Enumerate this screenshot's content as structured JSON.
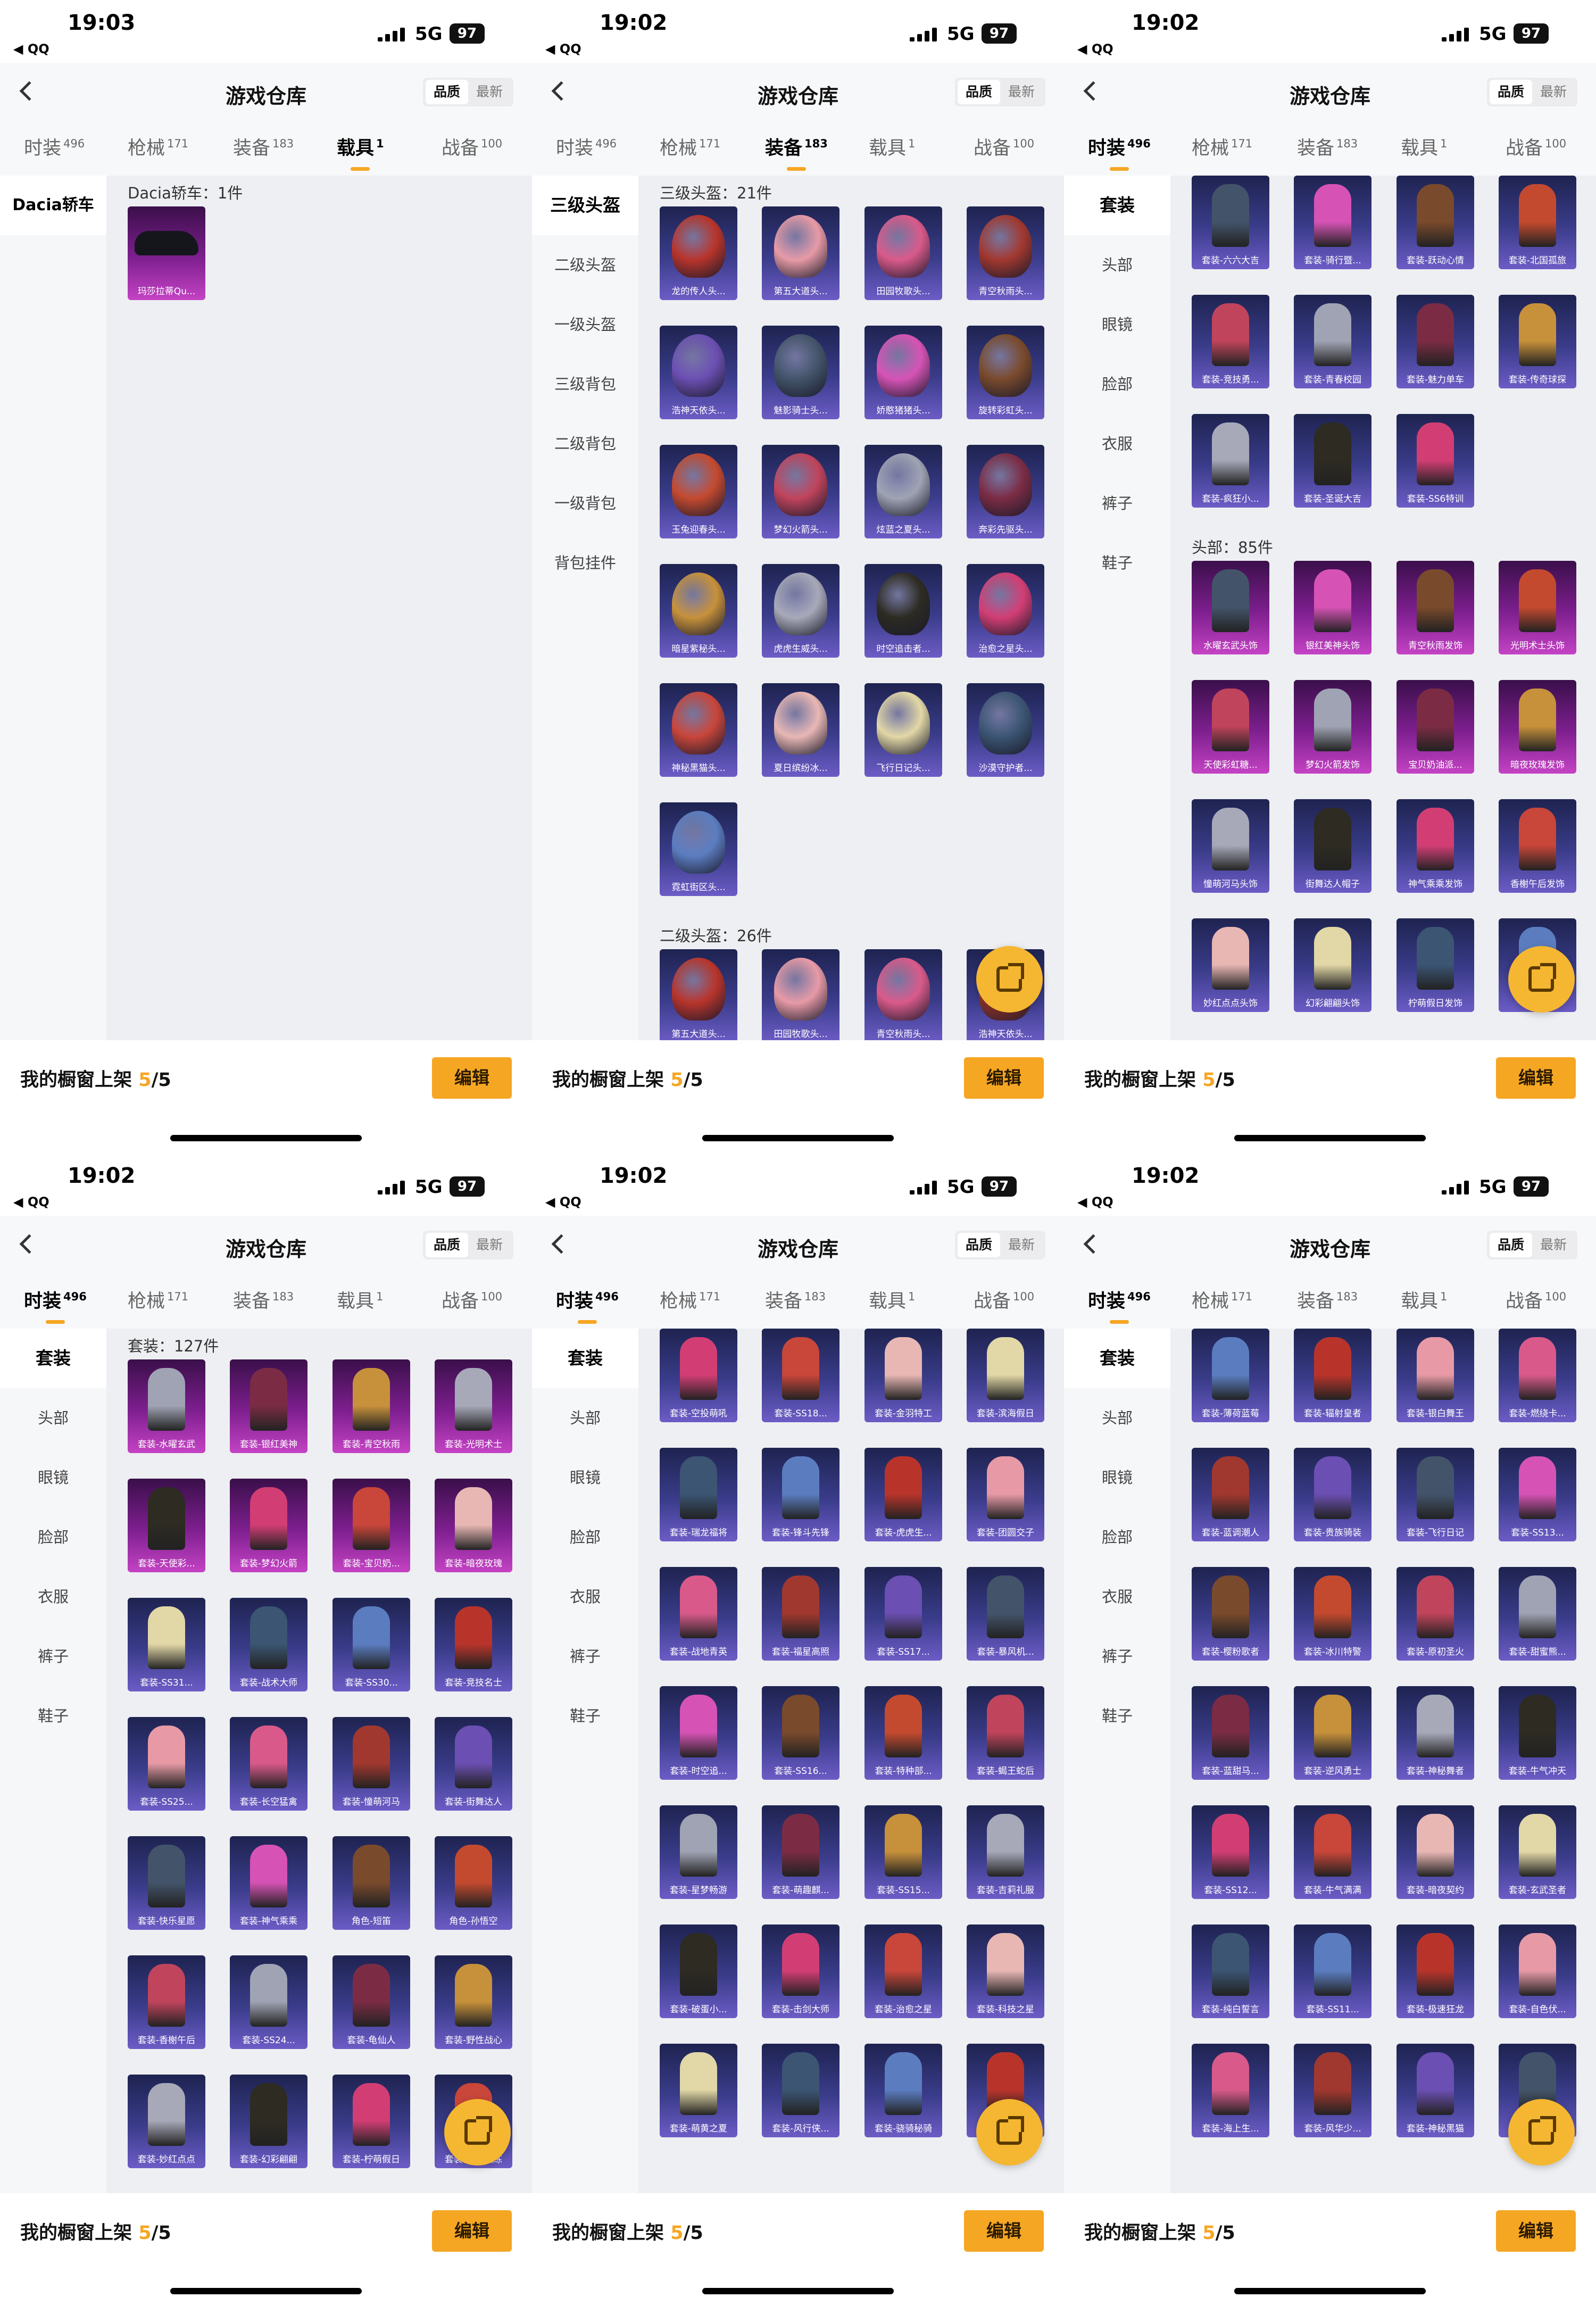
{
  "status_bar": {
    "back_app": "◀ QQ",
    "network": "5G",
    "battery": "97"
  },
  "nav": {
    "title": "游戏仓库",
    "sort_quality": "品质",
    "sort_latest": "最新"
  },
  "tab_labels": [
    {
      "label": "时装",
      "count": "496"
    },
    {
      "label": "枪械",
      "count": "171"
    },
    {
      "label": "装备",
      "count": "183"
    },
    {
      "label": "载具",
      "count": "1"
    },
    {
      "label": "战备",
      "count": "100"
    }
  ],
  "bottom_bar": {
    "label": "我的橱窗上架",
    "current": "5",
    "total": "/5",
    "edit": "编辑"
  },
  "panels": [
    {
      "time": "19:03",
      "active_tab": 3,
      "sidebar": [
        "Dacia轿车"
      ],
      "sections": [
        {
          "header": "Dacia轿车：1件",
          "items": [
            {
              "label": "玛莎拉蒂Qu...",
              "kind": "car"
            }
          ]
        }
      ]
    },
    {
      "time": "19:02",
      "active_tab": 2,
      "sidebar": [
        "三级头盔",
        "二级头盔",
        "一级头盔",
        "三级背包",
        "二级背包",
        "一级背包",
        "背包挂件"
      ],
      "sections": [
        {
          "header": "三级头盔：21件",
          "items": [
            {
              "label": "龙的传人头..."
            },
            {
              "label": "第五大道头..."
            },
            {
              "label": "田园牧歌头..."
            },
            {
              "label": "青空秋雨头..."
            },
            {
              "label": "浩神天依头..."
            },
            {
              "label": "魅影骑士头..."
            },
            {
              "label": "娇憨猪猪头..."
            },
            {
              "label": "旋转彩虹头..."
            },
            {
              "label": "玉兔迎春头..."
            },
            {
              "label": "梦幻火箭头..."
            },
            {
              "label": "炫蓝之夏头..."
            },
            {
              "label": "奔彩先驱头..."
            },
            {
              "label": "暗星紫秘头..."
            },
            {
              "label": "虎虎生威头..."
            },
            {
              "label": "时空追击者..."
            },
            {
              "label": "治愈之星头..."
            },
            {
              "label": "神秘黑猫头..."
            },
            {
              "label": "夏日缤纷冰..."
            },
            {
              "label": "飞行日记头..."
            },
            {
              "label": "沙漠守护者..."
            },
            {
              "label": "霓虹街区头..."
            }
          ]
        },
        {
          "header": "二级头盔：26件",
          "items": [
            {
              "label": "第五大道头..."
            },
            {
              "label": "田园牧歌头..."
            },
            {
              "label": "青空秋雨头..."
            },
            {
              "label": "浩神天依头..."
            }
          ]
        }
      ]
    },
    {
      "time": "19:02",
      "active_tab": 0,
      "sidebar": [
        "套装",
        "头部",
        "眼镜",
        "脸部",
        "衣服",
        "裤子",
        "鞋子"
      ],
      "sections": [
        {
          "header": "",
          "items": [
            {
              "label": "套装-六六大吉"
            },
            {
              "label": "套装-骑行暨..."
            },
            {
              "label": "套装-跃动心情"
            },
            {
              "label": "套装-北国孤旅"
            },
            {
              "label": "套装-竞技勇..."
            },
            {
              "label": "套装-青春校园"
            },
            {
              "label": "套装-魅力单车"
            },
            {
              "label": "套装-传奇球探"
            },
            {
              "label": "套装-疯狂小..."
            },
            {
              "label": "套装-圣诞大吉"
            },
            {
              "label": "套装-SS6特训"
            }
          ]
        },
        {
          "header": "头部：85件",
          "items": [
            {
              "label": "水曜玄武头饰",
              "pink": true
            },
            {
              "label": "银红美神头饰",
              "pink": true
            },
            {
              "label": "青空秋雨发饰",
              "pink": true
            },
            {
              "label": "光明术士头饰",
              "pink": true
            },
            {
              "label": "天使彩虹糖...",
              "pink": true
            },
            {
              "label": "梦幻火箭发饰",
              "pink": true
            },
            {
              "label": "宝贝奶油派...",
              "pink": true
            },
            {
              "label": "暗夜玫瑰发饰",
              "pink": true
            },
            {
              "label": "憧萌河马头饰"
            },
            {
              "label": "街舞达人帽子"
            },
            {
              "label": "神气乘乘发饰"
            },
            {
              "label": "香榭午后发饰"
            },
            {
              "label": "妙红点点头饰"
            },
            {
              "label": "幻彩翩翩头饰"
            },
            {
              "label": "柠萌假日发饰"
            },
            {
              "label": ""
            }
          ]
        }
      ]
    },
    {
      "time": "19:02",
      "active_tab": 0,
      "sidebar": [
        "套装",
        "头部",
        "眼镜",
        "脸部",
        "衣服",
        "裤子",
        "鞋子"
      ],
      "sections": [
        {
          "header": "套装：127件",
          "items": [
            {
              "label": "套装-水曜玄武",
              "pink": true
            },
            {
              "label": "套装-银红美神",
              "pink": true
            },
            {
              "label": "套装-青空秋雨",
              "pink": true
            },
            {
              "label": "套装-光明术士",
              "pink": true
            },
            {
              "label": "套装-天使彩...",
              "pink": true
            },
            {
              "label": "套装-梦幻火箭",
              "pink": true
            },
            {
              "label": "套装-宝贝奶...",
              "pink": true
            },
            {
              "label": "套装-暗夜玫瑰",
              "pink": true
            },
            {
              "label": "套装-SS31..."
            },
            {
              "label": "套装-战术大师"
            },
            {
              "label": "套装-SS30..."
            },
            {
              "label": "套装-竞技名士"
            },
            {
              "label": "套装-SS25..."
            },
            {
              "label": "套装-长空猛禽"
            },
            {
              "label": "套装-憧萌河马"
            },
            {
              "label": "套装-街舞达人"
            },
            {
              "label": "套装-快乐星愿"
            },
            {
              "label": "套装-神气乘乘"
            },
            {
              "label": "角色-短笛"
            },
            {
              "label": "角色-孙悟空"
            },
            {
              "label": "套装-香榭午后"
            },
            {
              "label": "套装-SS24..."
            },
            {
              "label": "套装-龟仙人"
            },
            {
              "label": "套装-野性战心"
            },
            {
              "label": "套装-妙红点点"
            },
            {
              "label": "套装-幻彩翩翩"
            },
            {
              "label": "套装-柠萌假日"
            },
            {
              "label": "套装-生命教练"
            }
          ]
        }
      ]
    },
    {
      "time": "19:02",
      "active_tab": 0,
      "sidebar": [
        "套装",
        "头部",
        "眼镜",
        "脸部",
        "衣服",
        "裤子",
        "鞋子"
      ],
      "sections": [
        {
          "header": "",
          "items": [
            {
              "label": "套装-空投萌吼"
            },
            {
              "label": "套装-SS18..."
            },
            {
              "label": "套装-金羽特工"
            },
            {
              "label": "套装-滨海假日"
            },
            {
              "label": "套装-瑞龙福将"
            },
            {
              "label": "套装-锋斗先锋"
            },
            {
              "label": "套装-虎虎生..."
            },
            {
              "label": "套装-团圆交子"
            },
            {
              "label": "套装-战地青英"
            },
            {
              "label": "套装-福星高照"
            },
            {
              "label": "套装-SS17..."
            },
            {
              "label": "套装-暴风机..."
            },
            {
              "label": "套装-时空追..."
            },
            {
              "label": "套装-SS16..."
            },
            {
              "label": "套装-特种部..."
            },
            {
              "label": "套装-蝎王蛇后"
            },
            {
              "label": "套装-星梦畅游"
            },
            {
              "label": "套装-萌趣麒..."
            },
            {
              "label": "套装-SS15..."
            },
            {
              "label": "套装-吉莉礼服"
            },
            {
              "label": "套装-破蛋小..."
            },
            {
              "label": "套装-击剑大师"
            },
            {
              "label": "套装-治愈之星"
            },
            {
              "label": "套装-科技之星"
            },
            {
              "label": "套装-萌黄之夏"
            },
            {
              "label": "套装-风行侠..."
            },
            {
              "label": "套装-骁骑秘骑"
            },
            {
              "label": ""
            }
          ]
        }
      ]
    },
    {
      "time": "19:02",
      "active_tab": 0,
      "sidebar": [
        "套装",
        "头部",
        "眼镜",
        "脸部",
        "衣服",
        "裤子",
        "鞋子"
      ],
      "sections": [
        {
          "header": "",
          "items": [
            {
              "label": "套装-薄荷蓝莓"
            },
            {
              "label": "套装-辐射皇者"
            },
            {
              "label": "套装-银白舞王"
            },
            {
              "label": "套装-燃绕卡..."
            },
            {
              "label": "套装-蓝调潮人"
            },
            {
              "label": "套装-贵族骑装"
            },
            {
              "label": "套装-飞行日记"
            },
            {
              "label": "套装-SS13..."
            },
            {
              "label": "套装-樱粉歌者"
            },
            {
              "label": "套装-冰川特警"
            },
            {
              "label": "套装-原初圣火"
            },
            {
              "label": "套装-甜蜜熊..."
            },
            {
              "label": "套装-蓝甜马..."
            },
            {
              "label": "套装-逆风勇士"
            },
            {
              "label": "套装-神秘舞者"
            },
            {
              "label": "套装-牛气冲天"
            },
            {
              "label": "套装-SS12..."
            },
            {
              "label": "套装-牛气满满"
            },
            {
              "label": "套装-暗夜契约"
            },
            {
              "label": "套装-玄武圣者"
            },
            {
              "label": "套装-纯白誓言"
            },
            {
              "label": "套装-SS11..."
            },
            {
              "label": "套装-极速狂龙"
            },
            {
              "label": "套装-自色伏..."
            },
            {
              "label": "套装-海上生..."
            },
            {
              "label": "套装-风华少..."
            },
            {
              "label": "套装-神秘黑猫"
            },
            {
              "label": ""
            }
          ]
        }
      ]
    }
  ]
}
